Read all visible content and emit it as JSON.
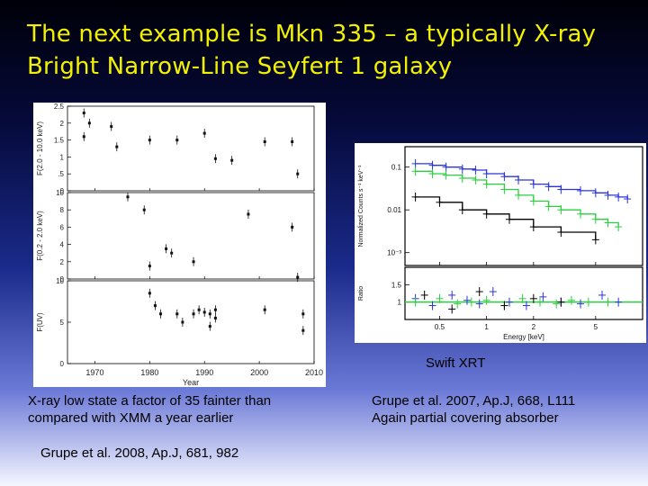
{
  "slide": {
    "title_line1": "The next example is Mkn 335 – a typically X-ray",
    "title_line2": "Bright Narrow-Line Seyfert 1 galaxy",
    "swift_label": "Swift XRT",
    "left_caption_line1": "X-ray low state a factor of 35 fainter than",
    "left_caption_line2": "compared with XMM a year earlier",
    "left_reference": "Grupe et al. 2008, Ap.J, 681, 982",
    "right_caption_line1": "Grupe et al. 2007, Ap.J, 668, L111",
    "right_caption_line2": "Again partial covering absorber"
  },
  "chart_data": [
    {
      "type": "scatter",
      "xlabel": "Year",
      "xlim": [
        1965,
        2010
      ],
      "x_ticks": [
        "1970",
        "1980",
        "1990",
        "2000",
        "2010"
      ],
      "panels": [
        {
          "ylabel": "F(2.0 - 10.0 keV)",
          "ylim": [
            0,
            2.5
          ],
          "y_ticks": [
            "0",
            ".5",
            "1",
            "1.5",
            "2",
            "2.5"
          ],
          "points": [
            [
              1968,
              2.3
            ],
            [
              1968,
              1.6
            ],
            [
              1969,
              2.0
            ],
            [
              1973,
              1.9
            ],
            [
              1974,
              1.3
            ],
            [
              1980,
              1.5
            ],
            [
              1985,
              1.5
            ],
            [
              1990,
              1.7
            ],
            [
              1992,
              0.95
            ],
            [
              1995,
              0.9
            ],
            [
              2001,
              1.45
            ],
            [
              2006,
              1.45
            ],
            [
              2007,
              0.5
            ]
          ]
        },
        {
          "ylabel": "F(0.2 - 2.0 keV)",
          "ylim": [
            0,
            10
          ],
          "y_ticks": [
            "0",
            "2",
            "4",
            "6",
            "8",
            "10"
          ],
          "points": [
            [
              1976,
              9.5
            ],
            [
              1979,
              8.0
            ],
            [
              1980,
              1.5
            ],
            [
              1983,
              3.5
            ],
            [
              1984,
              3.0
            ],
            [
              1988,
              2.0
            ],
            [
              1998,
              7.5
            ],
            [
              2006,
              6.0
            ],
            [
              2007,
              0.2
            ]
          ]
        },
        {
          "ylabel": "F(UV)",
          "ylim": [
            0,
            10
          ],
          "y_ticks": [
            "0",
            "5",
            "10"
          ],
          "points": [
            [
              1980,
              8.5
            ],
            [
              1981,
              7.0
            ],
            [
              1982,
              6.0
            ],
            [
              1985,
              6.0
            ],
            [
              1986,
              5.0
            ],
            [
              1988,
              6.0
            ],
            [
              1989,
              6.5
            ],
            [
              1990,
              6.2
            ],
            [
              1991,
              4.5
            ],
            [
              1991,
              6.0
            ],
            [
              1992,
              6.5
            ],
            [
              1992,
              5.5
            ],
            [
              2001,
              6.5
            ],
            [
              2008,
              6.0
            ],
            [
              2008,
              4.0
            ]
          ]
        }
      ]
    },
    {
      "type": "scatter",
      "xlabel": "Energy [keV]",
      "x_scale": "log",
      "xlim": [
        0.3,
        10
      ],
      "x_ticks": [
        "0.5",
        "1",
        "2",
        "5"
      ],
      "panels": [
        {
          "ylabel": "Normalized Counts s⁻¹ keV⁻¹",
          "y_scale": "log",
          "ylim": [
            0.0005,
            0.3
          ],
          "y_ticks": [
            "0.1",
            "0.01",
            "10⁻³"
          ],
          "series": [
            {
              "color": "#2a34d8",
              "x": [
                0.35,
                0.45,
                0.55,
                0.7,
                0.85,
                1.0,
                1.3,
                1.6,
                2.0,
                2.5,
                3.0,
                4.0,
                5.0,
                6.0,
                7.0,
                8.0
              ],
              "y": [
                0.12,
                0.11,
                0.1,
                0.09,
                0.085,
                0.07,
                0.06,
                0.05,
                0.04,
                0.035,
                0.03,
                0.028,
                0.025,
                0.022,
                0.02,
                0.018
              ]
            },
            {
              "color": "#28d03c",
              "x": [
                0.35,
                0.45,
                0.55,
                0.7,
                0.85,
                1.0,
                1.3,
                1.6,
                2.0,
                2.5,
                3.0,
                4.0,
                5.0,
                6.0,
                7.0
              ],
              "y": [
                0.08,
                0.07,
                0.065,
                0.055,
                0.05,
                0.04,
                0.03,
                0.022,
                0.016,
                0.012,
                0.01,
                0.008,
                0.006,
                0.005,
                0.004
              ]
            },
            {
              "color": "#000000",
              "x": [
                0.35,
                0.5,
                0.7,
                1.0,
                1.4,
                2.0,
                3.0,
                5.0
              ],
              "y": [
                0.02,
                0.015,
                0.01,
                0.008,
                0.006,
                0.004,
                0.003,
                0.002
              ]
            }
          ]
        },
        {
          "ylabel": "Ratio",
          "ylim": [
            0.5,
            2.0
          ],
          "y_ticks": [
            "1.5",
            "1"
          ],
          "series": [
            {
              "color": "#2a34d8",
              "x": [
                0.35,
                0.45,
                0.6,
                0.75,
                0.9,
                1.1,
                1.4,
                1.8,
                2.3,
                3.0,
                4.0,
                5.5,
                7.0
              ],
              "y": [
                1.1,
                0.9,
                1.2,
                1.05,
                0.95,
                1.3,
                1.0,
                0.9,
                1.15,
                1.0,
                0.95,
                1.2,
                1.0
              ]
            },
            {
              "color": "#28d03c",
              "x": [
                0.35,
                0.5,
                0.65,
                0.8,
                1.0,
                1.3,
                1.7,
                2.2,
                2.8,
                3.5,
                4.5,
                6.0
              ],
              "y": [
                1.0,
                1.1,
                0.95,
                1.0,
                1.05,
                0.9,
                1.1,
                1.0,
                0.95,
                1.05,
                1.0,
                1.0
              ]
            },
            {
              "color": "#000000",
              "x": [
                0.4,
                0.6,
                0.9,
                1.3,
                2.0,
                3.0
              ],
              "y": [
                1.2,
                0.8,
                1.3,
                0.9,
                1.1,
                1.0
              ]
            }
          ]
        }
      ]
    }
  ]
}
